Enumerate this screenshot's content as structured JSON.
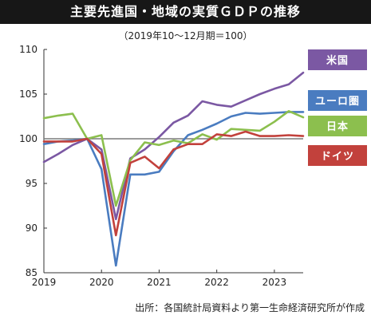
{
  "title": "主要先進国・地域の実質ＧＤＰの推移",
  "subtitle": "（2019年10〜12月期＝100）",
  "source": "出所：各国統計局資料より第一生命経済研究所が作成",
  "chart_data": {
    "type": "line",
    "title": "主要先進国・地域の実質ＧＤＰの推移",
    "subtitle": "（2019年10〜12月期＝100）",
    "xlabel": "",
    "ylabel": "",
    "x": [
      2019.0,
      2019.25,
      2019.5,
      2019.75,
      2020.0,
      2020.25,
      2020.5,
      2020.75,
      2021.0,
      2021.25,
      2021.5,
      2021.75,
      2022.0,
      2022.25,
      2022.5,
      2022.75,
      2023.0,
      2023.25,
      2023.5
    ],
    "xticks": [
      "2019",
      "2020",
      "2021",
      "2022",
      "2023"
    ],
    "xtick_values": [
      2019,
      2020,
      2021,
      2022,
      2023
    ],
    "xlim": [
      2019,
      2023.5
    ],
    "ylim": [
      85,
      110
    ],
    "yticks": [
      85,
      90,
      95,
      100,
      105,
      110
    ],
    "reference_line": 100,
    "grid": false,
    "legend_position": "right",
    "series": [
      {
        "name": "米国",
        "color": "#7b58a3",
        "values": [
          97.4,
          98.3,
          99.3,
          100.0,
          98.8,
          91.0,
          97.8,
          98.8,
          100.2,
          101.8,
          102.6,
          104.2,
          103.8,
          103.6,
          104.3,
          105.0,
          105.6,
          106.1,
          107.4
        ]
      },
      {
        "name": "ユーロ圏",
        "color": "#4a7cc0",
        "values": [
          99.4,
          99.7,
          99.8,
          100.0,
          96.6,
          85.8,
          96.0,
          96.0,
          96.3,
          98.6,
          100.4,
          101.0,
          101.7,
          102.5,
          102.9,
          102.8,
          102.9,
          103.0,
          103.0
        ]
      },
      {
        "name": "日本",
        "color": "#8cbf4e",
        "values": [
          102.3,
          102.6,
          102.8,
          100.0,
          100.4,
          92.5,
          97.6,
          99.6,
          99.3,
          99.8,
          99.5,
          100.5,
          99.9,
          101.1,
          101.0,
          100.9,
          101.9,
          103.1,
          102.4
        ]
      },
      {
        "name": "ドイツ",
        "color": "#c2413c",
        "values": [
          99.7,
          99.7,
          99.7,
          100.0,
          98.3,
          89.2,
          97.3,
          98.0,
          96.7,
          98.8,
          99.4,
          99.4,
          100.5,
          100.3,
          100.8,
          100.3,
          100.3,
          100.4,
          100.3
        ]
      }
    ]
  }
}
